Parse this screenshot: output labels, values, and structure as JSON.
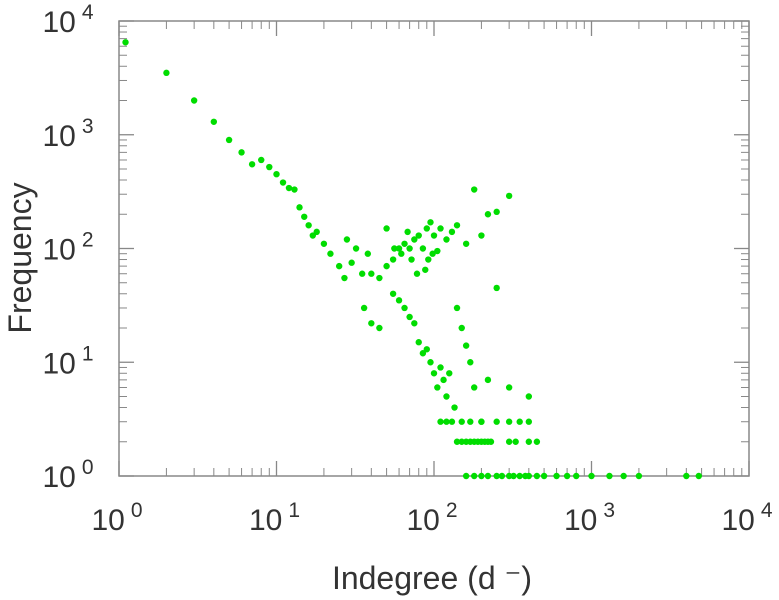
{
  "chart_data": {
    "type": "scatter",
    "xlabel": "Indegree (d  ⁻)",
    "ylabel": "Frequency",
    "x_scale": "log",
    "y_scale": "log",
    "xlim": [
      1,
      10000
    ],
    "ylim": [
      1,
      10000
    ],
    "x_ticks": [
      {
        "base": "10",
        "exp": "0",
        "value": 1
      },
      {
        "base": "10",
        "exp": "1",
        "value": 10
      },
      {
        "base": "10",
        "exp": "2",
        "value": 100
      },
      {
        "base": "10",
        "exp": "3",
        "value": 1000
      },
      {
        "base": "10",
        "exp": "4",
        "value": 10000
      }
    ],
    "y_ticks": [
      {
        "base": "10",
        "exp": "0",
        "value": 1
      },
      {
        "base": "10",
        "exp": "1",
        "value": 10
      },
      {
        "base": "10",
        "exp": "2",
        "value": 100
      },
      {
        "base": "10",
        "exp": "3",
        "value": 1000
      },
      {
        "base": "10",
        "exp": "4",
        "value": 10000
      }
    ],
    "grid": false,
    "marker_color": "#00dd00",
    "axis_color": "#888888",
    "points": [
      [
        1.1,
        6500
      ],
      [
        2,
        3500
      ],
      [
        3,
        2000
      ],
      [
        4,
        1300
      ],
      [
        5,
        900
      ],
      [
        6,
        700
      ],
      [
        7,
        550
      ],
      [
        8,
        600
      ],
      [
        9,
        520
      ],
      [
        10,
        450
      ],
      [
        11,
        380
      ],
      [
        12,
        340
      ],
      [
        13,
        330
      ],
      [
        14,
        230
      ],
      [
        15,
        190
      ],
      [
        16,
        160
      ],
      [
        17,
        130
      ],
      [
        18,
        140
      ],
      [
        20,
        110
      ],
      [
        22,
        90
      ],
      [
        25,
        70
      ],
      [
        27,
        55
      ],
      [
        30,
        75
      ],
      [
        35,
        60
      ],
      [
        28,
        120
      ],
      [
        32,
        100
      ],
      [
        38,
        90
      ],
      [
        40,
        60
      ],
      [
        45,
        55
      ],
      [
        50,
        70
      ],
      [
        55,
        80
      ],
      [
        60,
        100
      ],
      [
        65,
        110
      ],
      [
        70,
        100
      ],
      [
        75,
        120
      ],
      [
        80,
        130
      ],
      [
        85,
        100
      ],
      [
        90,
        150
      ],
      [
        95,
        170
      ],
      [
        100,
        130
      ],
      [
        110,
        150
      ],
      [
        120,
        120
      ],
      [
        130,
        140
      ],
      [
        140,
        160
      ],
      [
        160,
        110
      ],
      [
        180,
        330
      ],
      [
        200,
        130
      ],
      [
        220,
        200
      ],
      [
        250,
        210
      ],
      [
        300,
        290
      ],
      [
        36,
        30
      ],
      [
        40,
        22
      ],
      [
        45,
        20
      ],
      [
        55,
        40
      ],
      [
        60,
        35
      ],
      [
        65,
        30
      ],
      [
        70,
        25
      ],
      [
        75,
        22
      ],
      [
        80,
        15
      ],
      [
        85,
        12
      ],
      [
        90,
        13
      ],
      [
        95,
        10
      ],
      [
        100,
        8
      ],
      [
        105,
        6
      ],
      [
        110,
        9
      ],
      [
        115,
        7
      ],
      [
        120,
        5
      ],
      [
        125,
        8
      ],
      [
        130,
        3
      ],
      [
        135,
        4
      ],
      [
        140,
        30
      ],
      [
        150,
        20
      ],
      [
        160,
        14
      ],
      [
        170,
        10
      ],
      [
        180,
        6
      ],
      [
        200,
        3
      ],
      [
        220,
        7
      ],
      [
        250,
        45
      ],
      [
        300,
        6
      ],
      [
        400,
        5
      ],
      [
        50,
        150
      ],
      [
        56,
        100
      ],
      [
        62,
        90
      ],
      [
        68,
        140
      ],
      [
        72,
        80
      ],
      [
        78,
        60
      ],
      [
        88,
        65
      ],
      [
        92,
        80
      ],
      [
        98,
        90
      ],
      [
        105,
        95
      ],
      [
        140,
        2
      ],
      [
        150,
        2
      ],
      [
        160,
        2
      ],
      [
        170,
        2
      ],
      [
        180,
        2
      ],
      [
        190,
        2
      ],
      [
        200,
        2
      ],
      [
        210,
        2
      ],
      [
        220,
        2
      ],
      [
        230,
        2
      ],
      [
        300,
        2
      ],
      [
        330,
        2
      ],
      [
        400,
        2
      ],
      [
        450,
        2
      ],
      [
        110,
        3
      ],
      [
        120,
        3
      ],
      [
        150,
        3
      ],
      [
        170,
        3
      ],
      [
        200,
        3
      ],
      [
        250,
        3
      ],
      [
        300,
        3
      ],
      [
        350,
        3
      ],
      [
        400,
        3
      ],
      [
        160,
        1
      ],
      [
        180,
        1
      ],
      [
        200,
        1
      ],
      [
        220,
        1
      ],
      [
        250,
        1
      ],
      [
        270,
        1
      ],
      [
        300,
        1
      ],
      [
        320,
        1
      ],
      [
        350,
        1
      ],
      [
        380,
        1
      ],
      [
        400,
        1
      ],
      [
        450,
        1
      ],
      [
        500,
        1
      ],
      [
        600,
        1
      ],
      [
        700,
        1
      ],
      [
        800,
        1
      ],
      [
        1000,
        1
      ],
      [
        1300,
        1
      ],
      [
        1600,
        1
      ],
      [
        2000,
        1
      ],
      [
        4000,
        1
      ],
      [
        4800,
        1
      ]
    ]
  }
}
